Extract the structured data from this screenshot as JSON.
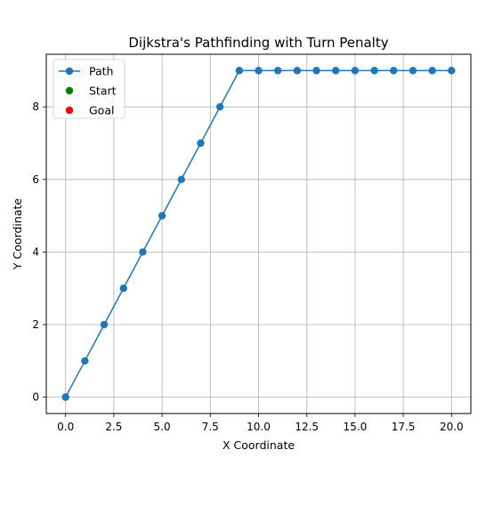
{
  "chart_data": {
    "type": "line",
    "title": "Dijkstra's Pathfinding with Turn Penalty",
    "xlabel": "X Coordinate",
    "ylabel": "Y Coordinate",
    "xlim": [
      -1.0,
      21.0
    ],
    "ylim": [
      -0.45,
      9.45
    ],
    "grid": true,
    "legend_position": "top-left",
    "x_ticks": [
      0.0,
      2.5,
      5.0,
      7.5,
      10.0,
      12.5,
      15.0,
      17.5,
      20.0
    ],
    "x_tick_labels": [
      "0.0",
      "2.5",
      "5.0",
      "7.5",
      "10.0",
      "12.5",
      "15.0",
      "17.5",
      "20.0"
    ],
    "y_ticks": [
      0,
      2,
      4,
      6,
      8
    ],
    "y_tick_labels": [
      "0",
      "2",
      "4",
      "6",
      "8"
    ],
    "series": [
      {
        "name": "Path",
        "kind": "line-marker",
        "color": "#1f77b4",
        "x": [
          0,
          1,
          2,
          3,
          4,
          5,
          6,
          7,
          8,
          9,
          10,
          11,
          12,
          13,
          14,
          15,
          16,
          17,
          18,
          19,
          20
        ],
        "y": [
          0,
          1,
          2,
          3,
          4,
          5,
          6,
          7,
          8,
          9,
          9,
          9,
          9,
          9,
          9,
          9,
          9,
          9,
          9,
          9,
          9
        ]
      },
      {
        "name": "Start",
        "kind": "scatter",
        "color": "#008000",
        "x": [],
        "y": []
      },
      {
        "name": "Goal",
        "kind": "scatter",
        "color": "#ff0000",
        "x": [],
        "y": []
      }
    ]
  }
}
